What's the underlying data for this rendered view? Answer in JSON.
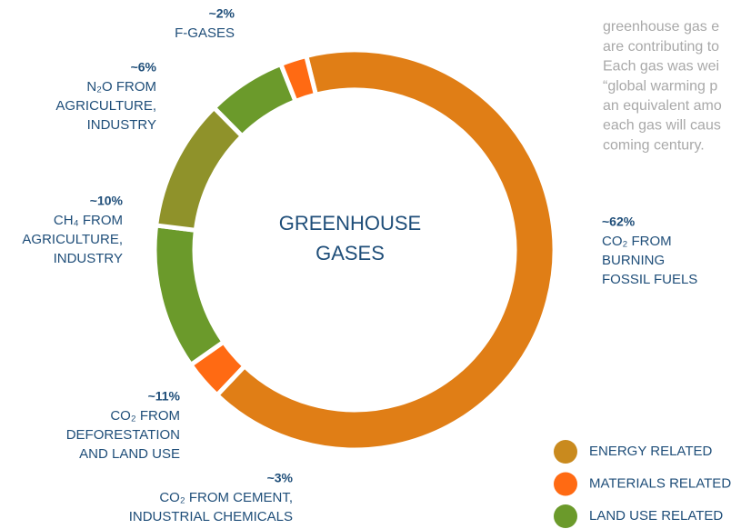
{
  "chart_data": {
    "type": "donut",
    "center_label": [
      "GREENHOUSE",
      "GASES"
    ],
    "note": [
      "greenhouse gas e",
      "are contributing to",
      "Each gas was wei",
      "“global warming p",
      "an equivalent amo",
      "each gas will caus",
      "coming century."
    ],
    "legend": [
      {
        "name": "ENERGY RELATED",
        "color": "#c98a1e"
      },
      {
        "name": "MATERIALS RELATED",
        "color": "#ff6a13"
      },
      {
        "name": "LAND USE RELATED",
        "color": "#6b9a2b"
      }
    ],
    "segments": [
      {
        "value": 62,
        "value_label": "~62%",
        "label": [
          "CO₂ FROM",
          "BURNING",
          "FOSSIL FUELS"
        ],
        "color": "#e07e16"
      },
      {
        "value": 3,
        "value_label": "~3%",
        "label": [
          "CO₂ FROM CEMENT,",
          "INDUSTRIAL CHEMICALS"
        ],
        "color": "#ff6a13"
      },
      {
        "value": 11,
        "value_label": "~11%",
        "label": [
          "CO₂ FROM",
          "DEFORESTATION",
          "AND LAND USE"
        ],
        "color": "#6b9a2b"
      },
      {
        "value": 10,
        "value_label": "~10%",
        "label": [
          "CH₄ FROM",
          "AGRICULTURE,",
          "INDUSTRY"
        ],
        "color": "#8f922a"
      },
      {
        "value": 6,
        "value_label": "~6%",
        "label": [
          "N₂O FROM",
          "AGRICULTURE,",
          "INDUSTRY"
        ],
        "color": "#6b9a2b"
      },
      {
        "value": 2,
        "value_label": "~2%",
        "label": [
          "F-GASES"
        ],
        "color": "#ff6a13"
      }
    ]
  }
}
